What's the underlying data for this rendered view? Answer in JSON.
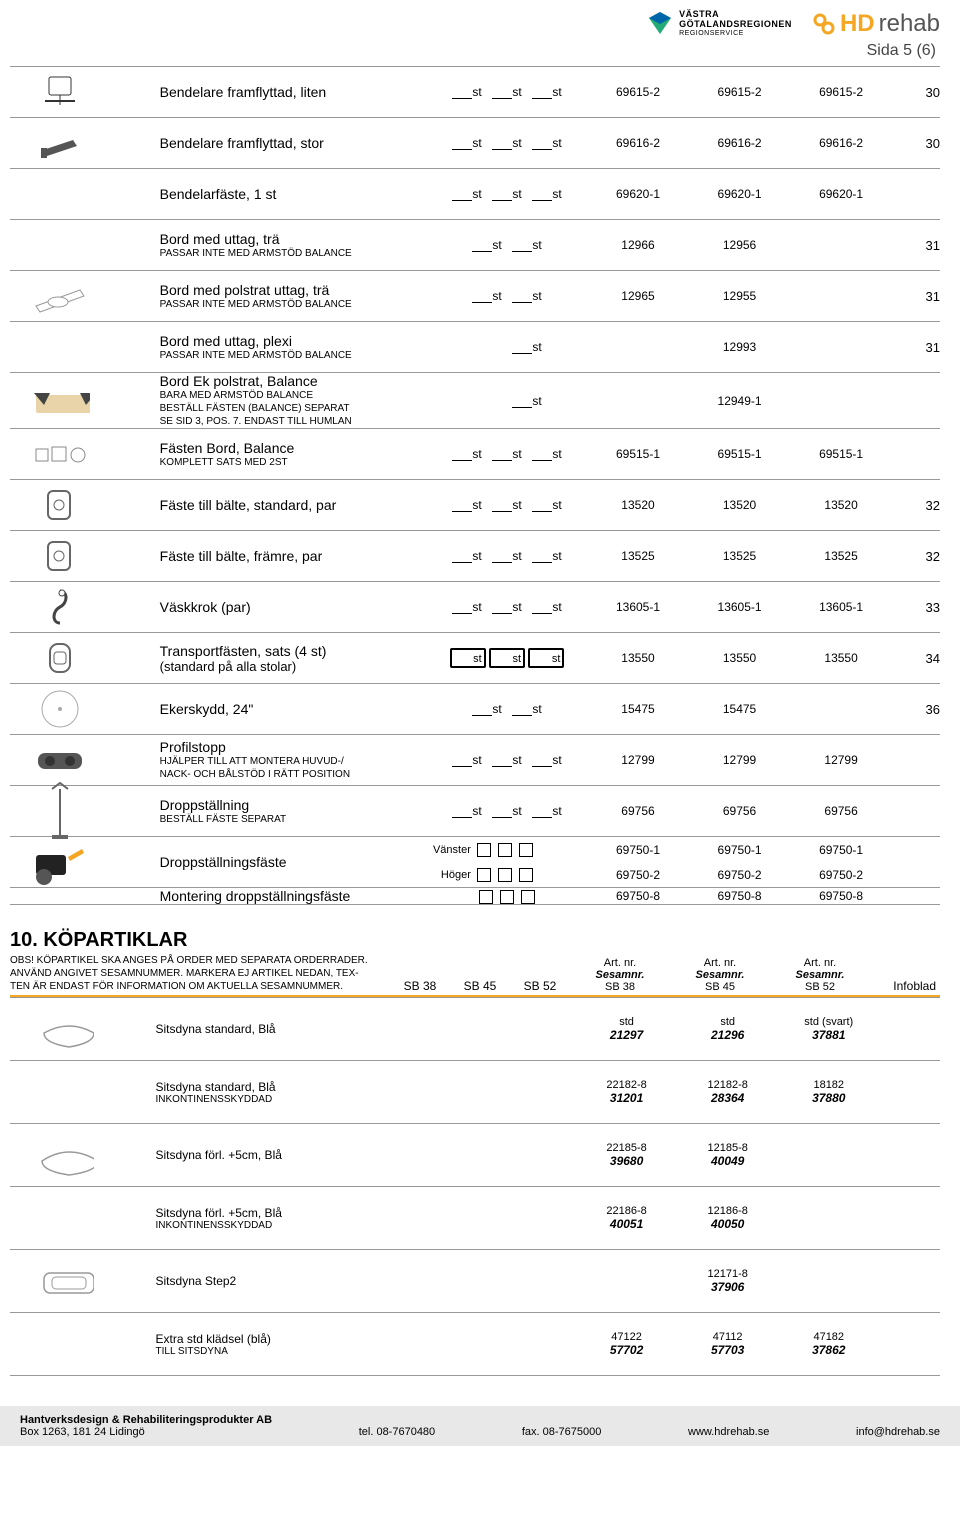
{
  "header": {
    "vg_line1": "VÄSTRA",
    "vg_line2": "GÖTALANDSREGIONEN",
    "vg_line3": "REGIONSERVICE",
    "rehab_hd": "HD",
    "rehab_text": "rehab",
    "page_num": "Sida 5 (6)"
  },
  "st": "st",
  "rows": [
    {
      "title": "Bendelare framflyttad, liten",
      "sub": "",
      "qty3": true,
      "c1": "69615-2",
      "c2": "69615-2",
      "c3": "69615-2",
      "last": "30"
    },
    {
      "title": "Bendelare framflyttad, stor",
      "sub": "",
      "qty3": true,
      "c1": "69616-2",
      "c2": "69616-2",
      "c3": "69616-2",
      "last": "30"
    },
    {
      "title": "Bendelarfäste, 1 st",
      "sub": "",
      "qty3": true,
      "c1": "69620-1",
      "c2": "69620-1",
      "c3": "69620-1",
      "last": ""
    },
    {
      "title": "Bord med uttag, trä",
      "sub": "PASSAR INTE MED ARMSTÖD BALANCE",
      "qty2": true,
      "c1": "12966",
      "c2": "12956",
      "c3": "",
      "last": "31"
    },
    {
      "title": "Bord med polstrat uttag, trä",
      "sub": "PASSAR INTE MED ARMSTÖD BALANCE",
      "qty2": true,
      "c1": "12965",
      "c2": "12955",
      "c3": "",
      "last": "31"
    },
    {
      "title": "Bord med uttag, plexi",
      "sub": "PASSAR INTE MED ARMSTÖD BALANCE",
      "qty1mid": true,
      "c1": "",
      "c2": "12993",
      "c3": "",
      "last": "31"
    },
    {
      "title": "Bord Ek polstrat, Balance",
      "sub": "BARA MED ARMSTÖD BALANCE\nBESTÄLL FÄSTEN (BALANCE) SEPARAT\nSE SID 3, POS. 7. ENDAST TILL HUMLAN",
      "qty1mid": true,
      "c1": "",
      "c2": "12949-1",
      "c3": "",
      "last": ""
    },
    {
      "title": "Fästen Bord, Balance",
      "sub": "KOMPLETT SATS MED 2ST",
      "qty3": true,
      "c1": "69515-1",
      "c2": "69515-1",
      "c3": "69515-1",
      "last": ""
    },
    {
      "title": "Fäste till bälte, standard, par",
      "sub": "",
      "qty3": true,
      "c1": "13520",
      "c2": "13520",
      "c3": "13520",
      "last": "32"
    },
    {
      "title": "Fäste till bälte, främre, par",
      "sub": "",
      "qty3": true,
      "c1": "13525",
      "c2": "13525",
      "c3": "13525",
      "last": "32"
    },
    {
      "title": "Väskkrok (par)",
      "sub": "",
      "qty3": true,
      "c1": "13605-1",
      "c2": "13605-1",
      "c3": "13605-1",
      "last": "33"
    },
    {
      "title": "Transportfästen, sats (4 st)",
      "sub2": "(standard på alla stolar)",
      "boldbox": true,
      "c1": "13550",
      "c2": "13550",
      "c3": "13550",
      "last": "34"
    },
    {
      "title": "Ekerskydd, 24\"",
      "sub": "",
      "qty2": true,
      "c1": "15475",
      "c2": "15475",
      "c3": "",
      "last": "36"
    },
    {
      "title": "Profilstopp",
      "sub": "HJÄLPER TILL ATT MONTERA HUVUD-/\nNACK- OCH BÅLSTÖD I RÄTT POSITION",
      "qty3": true,
      "c1": "12799",
      "c2": "12799",
      "c3": "12799",
      "last": ""
    },
    {
      "title": "Droppställning",
      "sub": "BESTÄLL FÄSTE SEPARAT",
      "qty3": true,
      "c1": "69756",
      "c2": "69756",
      "c3": "69756",
      "last": ""
    }
  ],
  "dropp": {
    "title": "Droppställningsfäste",
    "vanster": "Vänster",
    "hoger": "Höger",
    "v_c1": "69750-1",
    "v_c2": "69750-1",
    "v_c3": "69750-1",
    "h_c1": "69750-2",
    "h_c2": "69750-2",
    "h_c3": "69750-2"
  },
  "montering": {
    "title": "Montering droppställningsfäste",
    "c1": "69750-8",
    "c2": "69750-8",
    "c3": "69750-8"
  },
  "section2": {
    "title": "10. KÖPARTIKLAR",
    "note": "OBS! KÖPARTIKEL SKA ANGES PÅ ORDER MED SEPARATA ORDERRADER.\nANVÄND ANGIVET SESAMNUMMER. MARKERA EJ ARTIKEL NEDAN, TEX-\nTEN ÄR ENDAST FÖR INFORMATION OM AKTUELLA SESAMNUMMER.",
    "sb38": "SB 38",
    "sb45": "SB 45",
    "sb52": "SB 52",
    "artnr": "Art. nr.",
    "sesam": "Sesamnr.",
    "h_sb38": "SB 38",
    "h_sb45": "SB 45",
    "h_sb52": "SB 52",
    "infoblad": "Infoblad"
  },
  "sec2rows": [
    {
      "title": "Sitsdyna standard, Blå",
      "sub": "",
      "c1a": "std",
      "c1b": "21297",
      "c2a": "std",
      "c2b": "21296",
      "c3a": "std (svart)",
      "c3b": "37881"
    },
    {
      "title": "Sitsdyna standard, Blå",
      "sub": "INKONTINENSSKYDDAD",
      "c1a": "22182-8",
      "c1b": "31201",
      "c2a": "12182-8",
      "c2b": "28364",
      "c3a": "18182",
      "c3b": "37880"
    },
    {
      "title": "Sitsdyna förl. +5cm, Blå",
      "sub": "",
      "c1a": "22185-8",
      "c1b": "39680",
      "c2a": "12185-8",
      "c2b": "40049",
      "c3a": "",
      "c3b": ""
    },
    {
      "title": "Sitsdyna förl. +5cm, Blå",
      "sub": "INKONTINENSSKYDDAD",
      "c1a": "22186-8",
      "c1b": "40051",
      "c2a": "12186-8",
      "c2b": "40050",
      "c3a": "",
      "c3b": ""
    },
    {
      "title": "Sitsdyna Step2",
      "sub": "",
      "c1a": "",
      "c1b": "",
      "c2a": "12171-8",
      "c2b": "37906",
      "c3a": "",
      "c3b": ""
    },
    {
      "title": "Extra std klädsel (blå)",
      "sub": "TILL SITSDYNA",
      "c1a": "47122",
      "c1b": "57702",
      "c2a": "47112",
      "c2b": "57703",
      "c3a": "47182",
      "c3b": "37862"
    }
  ],
  "footer": {
    "company": "Hantverksdesign & Rehabiliteringsprodukter AB",
    "addr": "Box 1263, 181 24 Lidingö",
    "tel": "tel. 08-7670480",
    "fax": "fax. 08-7675000",
    "www": "www.hdrehab.se",
    "email": "info@hdrehab.se"
  }
}
